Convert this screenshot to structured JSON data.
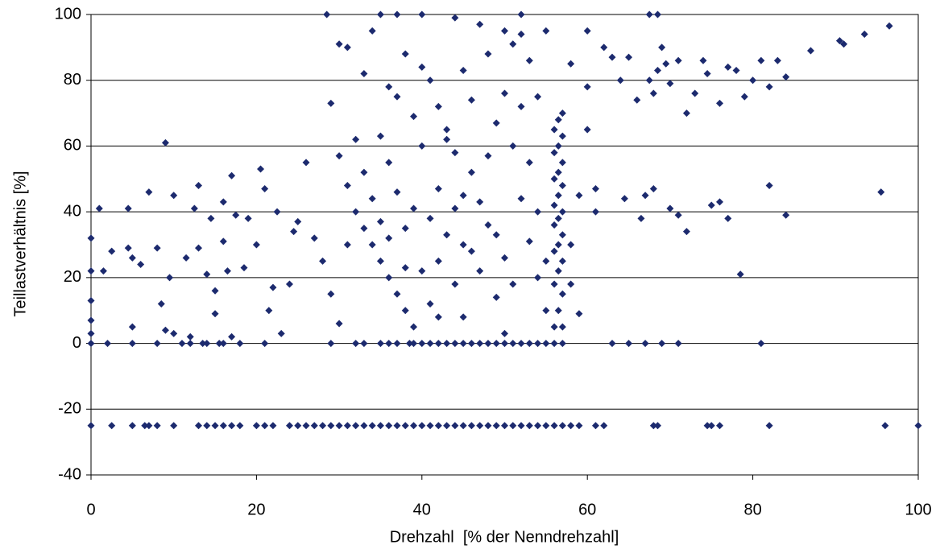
{
  "chart_data": {
    "type": "scatter",
    "xlabel": "Drehzahl  [% der Nenndrehzahl]",
    "ylabel": "Teillastverhältnis [%]",
    "color": "#1c2a6e",
    "grid": true,
    "xlim": [
      0,
      100
    ],
    "xticks": [
      0,
      20,
      40,
      60,
      80,
      100
    ],
    "ylim": [
      -40,
      100
    ],
    "yticks": [
      -40,
      -20,
      0,
      20,
      40,
      60,
      80,
      100
    ],
    "x": [
      0,
      2.5,
      5,
      6.5,
      7,
      8,
      10,
      13,
      14,
      15,
      16,
      17,
      18,
      20,
      21,
      22,
      24,
      25,
      26,
      27,
      28,
      29,
      30,
      31,
      32,
      33,
      34,
      35,
      36,
      37,
      38,
      39,
      40,
      41,
      42,
      43,
      44,
      45,
      46,
      47,
      48,
      49,
      50,
      51,
      52,
      53,
      54,
      55,
      56,
      57,
      58,
      59,
      61,
      62,
      68,
      68.5,
      74.5,
      75,
      76,
      82,
      96,
      100,
      0,
      2,
      5,
      8,
      11,
      12,
      13.5,
      14,
      15.5,
      16,
      18,
      21,
      29,
      32,
      33,
      35,
      36,
      37,
      38.5,
      39,
      40,
      41,
      42,
      43,
      44,
      45,
      46,
      47,
      48,
      49,
      50,
      51,
      52,
      53,
      54,
      55,
      56,
      57,
      63,
      65,
      67,
      69,
      71,
      81,
      56,
      56.5,
      57,
      56,
      56.5,
      57,
      56,
      56.5,
      57,
      56,
      56.5,
      57,
      56,
      56.5,
      57,
      56,
      56.5,
      57,
      56,
      56.5,
      57,
      56,
      56.5,
      57,
      28.5,
      30,
      31,
      29,
      33,
      34,
      35,
      36,
      37,
      38,
      39,
      40,
      41,
      42,
      43,
      44,
      45,
      46,
      47,
      48,
      49,
      50,
      51,
      52,
      53,
      54,
      55,
      52,
      50,
      44,
      40,
      37,
      30,
      31,
      32,
      33,
      34,
      35,
      36,
      37,
      38,
      39,
      40,
      41,
      42,
      43,
      44,
      45,
      46,
      47,
      48,
      49,
      50,
      51,
      52,
      53,
      54,
      55,
      58,
      59,
      28,
      29,
      30,
      31,
      32,
      33,
      34,
      35,
      36,
      37,
      38,
      39,
      40,
      41,
      42,
      43,
      44,
      45,
      46,
      47,
      48,
      49,
      50,
      51,
      52,
      53,
      54,
      27,
      26,
      25,
      58,
      59,
      60,
      60,
      58,
      57,
      55,
      35,
      36,
      38,
      42,
      45,
      0,
      0,
      0,
      0,
      0,
      1,
      1.5,
      2.5,
      4.5,
      4.5,
      5,
      5,
      6,
      7,
      8,
      8.5,
      9,
      9,
      9.5,
      10,
      10,
      11.5,
      12,
      12.5,
      13,
      13,
      14,
      14.5,
      15,
      15,
      16,
      16,
      16.5,
      17,
      17,
      17.5,
      18.5,
      19,
      20,
      20.5,
      21,
      21.5,
      22,
      22.5,
      23,
      24,
      24.5,
      60,
      61,
      61,
      62,
      63,
      64,
      64.5,
      65,
      66,
      66.5,
      67,
      67.5,
      68,
      68,
      68.5,
      69,
      69.5,
      70,
      70,
      71,
      71,
      72,
      72,
      73,
      74,
      74.5,
      75,
      76,
      76,
      77,
      77,
      78,
      78.5,
      79,
      80,
      81,
      82,
      82,
      83,
      84,
      84,
      87,
      90.5,
      91,
      93.5,
      95.5,
      96.5,
      67.5,
      68.5
    ],
    "values": [
      -25,
      -25,
      -25,
      -25,
      -25,
      -25,
      -25,
      -25,
      -25,
      -25,
      -25,
      -25,
      -25,
      -25,
      -25,
      -25,
      -25,
      -25,
      -25,
      -25,
      -25,
      -25,
      -25,
      -25,
      -25,
      -25,
      -25,
      -25,
      -25,
      -25,
      -25,
      -25,
      -25,
      -25,
      -25,
      -25,
      -25,
      -25,
      -25,
      -25,
      -25,
      -25,
      -25,
      -25,
      -25,
      -25,
      -25,
      -25,
      -25,
      -25,
      -25,
      -25,
      -25,
      -25,
      -25,
      -25,
      -25,
      -25,
      -25,
      -25,
      -25,
      -25,
      0,
      0,
      0,
      0,
      0,
      0,
      0,
      0,
      0,
      0,
      0,
      0,
      0,
      0,
      0,
      0,
      0,
      0,
      0,
      0,
      0,
      0,
      0,
      0,
      0,
      0,
      0,
      0,
      0,
      0,
      0,
      0,
      0,
      0,
      0,
      0,
      0,
      0,
      0,
      0,
      0,
      0,
      0,
      0,
      5,
      10,
      15,
      18,
      22,
      25,
      28,
      30,
      33,
      36,
      38,
      40,
      42,
      45,
      48,
      50,
      52,
      55,
      58,
      60,
      63,
      65,
      68,
      70,
      100,
      91,
      90,
      73,
      82,
      95,
      100,
      78,
      75,
      88,
      69,
      84,
      80,
      72,
      65,
      58,
      83,
      74,
      97,
      88,
      67,
      76,
      91,
      94,
      86,
      75,
      95,
      100,
      95,
      99,
      100,
      100,
      57,
      48,
      40,
      35,
      30,
      25,
      20,
      15,
      10,
      5,
      22,
      38,
      47,
      33,
      18,
      8,
      28,
      43,
      36,
      14,
      26,
      60,
      44,
      31,
      20,
      10,
      18,
      9,
      25,
      15,
      6,
      30,
      62,
      52,
      44,
      63,
      55,
      46,
      35,
      41,
      60,
      12,
      25,
      62,
      41,
      30,
      52,
      22,
      57,
      33,
      3,
      18,
      72,
      55,
      40,
      32,
      55,
      37,
      30,
      45,
      65,
      95,
      85,
      5,
      25,
      37,
      32,
      23,
      8,
      45,
      32,
      22,
      13,
      7,
      3,
      41,
      22,
      28,
      41,
      29,
      26,
      5,
      24,
      46,
      29,
      12,
      4,
      61,
      20,
      45,
      3,
      26,
      2,
      41,
      48,
      29,
      21,
      38,
      16,
      9,
      43,
      31,
      22,
      51,
      2,
      39,
      23,
      38,
      30,
      53,
      47,
      10,
      17,
      40,
      3,
      18,
      34,
      78,
      47,
      40,
      90,
      87,
      80,
      44,
      87,
      74,
      38,
      45,
      80,
      76,
      47,
      83,
      90,
      85,
      79,
      41,
      86,
      39,
      70,
      34,
      76,
      86,
      82,
      42,
      43,
      73,
      84,
      38,
      83,
      21,
      75,
      80,
      86,
      78,
      48,
      86,
      81,
      39,
      89,
      92,
      91,
      94,
      46,
      96.5,
      100,
      100
    ]
  }
}
